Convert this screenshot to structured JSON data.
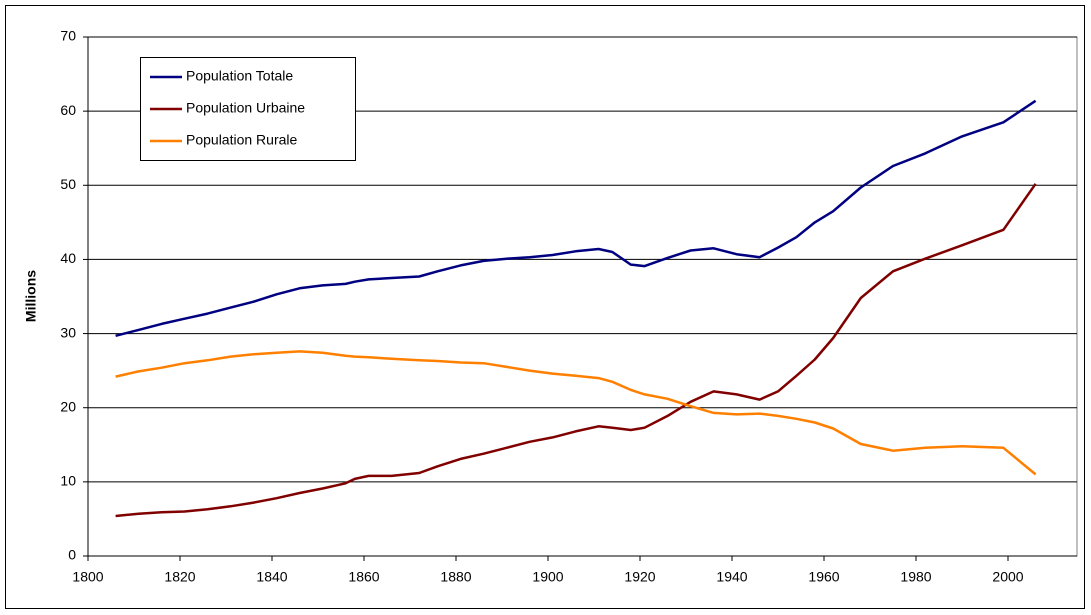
{
  "chart_data": {
    "type": "line",
    "y_label": "Millions",
    "x": [
      1806,
      1811,
      1816,
      1821,
      1826,
      1831,
      1836,
      1841,
      1846,
      1851,
      1856,
      1858,
      1861,
      1866,
      1872,
      1876,
      1881,
      1886,
      1891,
      1896,
      1901,
      1906,
      1911,
      1914,
      1918,
      1921,
      1926,
      1931,
      1936,
      1941,
      1946,
      1950,
      1954,
      1958,
      1962,
      1968,
      1975,
      1982,
      1990,
      1999,
      2006
    ],
    "series": [
      {
        "name": "Population Totale",
        "color": "#000080",
        "values": [
          29.7,
          30.5,
          31.3,
          32.0,
          32.7,
          33.5,
          34.3,
          35.3,
          36.1,
          36.5,
          36.7,
          37.0,
          37.3,
          37.5,
          37.7,
          38.4,
          39.2,
          39.8,
          40.1,
          40.3,
          40.6,
          41.1,
          41.4,
          41.0,
          39.3,
          39.1,
          40.2,
          41.2,
          41.5,
          40.7,
          40.3,
          41.6,
          43.0,
          45.0,
          46.5,
          49.7,
          52.6,
          54.3,
          56.6,
          58.5,
          61.4
        ]
      },
      {
        "name": "Population Urbaine",
        "color": "#800000",
        "values": [
          5.4,
          5.7,
          5.9,
          6.0,
          6.3,
          6.7,
          7.2,
          7.8,
          8.5,
          9.1,
          9.8,
          10.4,
          10.8,
          10.8,
          11.2,
          12.1,
          13.1,
          13.8,
          14.6,
          15.4,
          16.0,
          16.8,
          17.5,
          17.3,
          17.0,
          17.3,
          18.9,
          20.8,
          22.2,
          21.8,
          21.1,
          22.2,
          24.3,
          26.5,
          29.4,
          34.8,
          38.4,
          40.1,
          41.9,
          44.0,
          50.2
        ]
      },
      {
        "name": "Population Rurale",
        "color": "#ff8000",
        "values": [
          24.2,
          24.9,
          25.4,
          26.0,
          26.4,
          26.9,
          27.2,
          27.4,
          27.6,
          27.4,
          27.0,
          26.9,
          26.8,
          26.6,
          26.4,
          26.3,
          26.1,
          26.0,
          25.5,
          25.0,
          24.6,
          24.3,
          24.0,
          23.5,
          22.4,
          21.8,
          21.2,
          20.2,
          19.3,
          19.1,
          19.2,
          18.9,
          18.5,
          18.0,
          17.2,
          15.1,
          14.2,
          14.6,
          14.8,
          14.6,
          11.0
        ]
      }
    ],
    "xlim": [
      1800,
      2015
    ],
    "xticks": [
      1800,
      1820,
      1840,
      1860,
      1880,
      1900,
      1920,
      1940,
      1960,
      1980,
      2000
    ],
    "ylim": [
      0,
      70
    ],
    "yticks": [
      0,
      10,
      20,
      30,
      40,
      50,
      60,
      70
    ],
    "grid": true,
    "legend": "upper left"
  }
}
